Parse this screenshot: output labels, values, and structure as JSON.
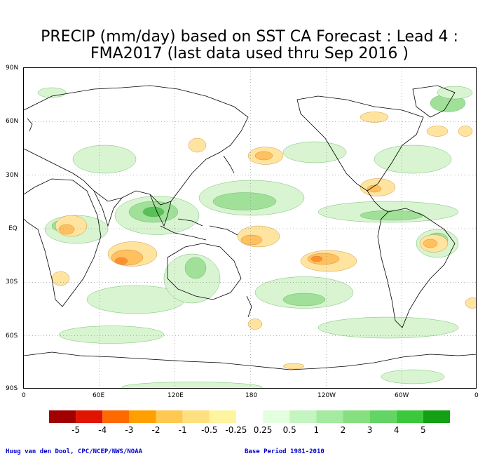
{
  "title_line1": "PRECIP (mm/day) based on SST CA Forecast : Lead 4 :",
  "title_line2": "FMA2017 (last data used thru Sep 2016 )",
  "lat_labels": [
    "90N",
    "60N",
    "30N",
    "EQ",
    "30S",
    "60S",
    "90S"
  ],
  "lon_labels": [
    "0",
    "60E",
    "120E",
    "180",
    "120W",
    "60W",
    "0"
  ],
  "legend": {
    "colors": [
      "#a00000",
      "#e01400",
      "#ff6a00",
      "#ffa000",
      "#ffc850",
      "#ffe080",
      "#fff4a0",
      "#ffffff",
      "#e4ffe0",
      "#c4f4c0",
      "#a4eaa0",
      "#86e080",
      "#64d464",
      "#3cc83c",
      "#14a014"
    ],
    "labels": [
      "-5",
      "-4",
      "-3",
      "-2",
      "-1",
      "-0.5",
      "-0.25",
      "0.25",
      "0.5",
      "1",
      "2",
      "3",
      "4",
      "5"
    ]
  },
  "colors": {
    "wet_light": "#d8f4d0",
    "wet_mid": "#a0e098",
    "wet_dark": "#58c058",
    "dry_light": "#ffe4a0",
    "dry_mid": "#ffc060",
    "dry_dark": "#ff9030",
    "coast": "#000000",
    "grid": "#888888"
  },
  "credit_left": "Huug van den Dool, CPC/NCEP/NWS/NOAA",
  "credit_right": "Base Period 1981-2010"
}
